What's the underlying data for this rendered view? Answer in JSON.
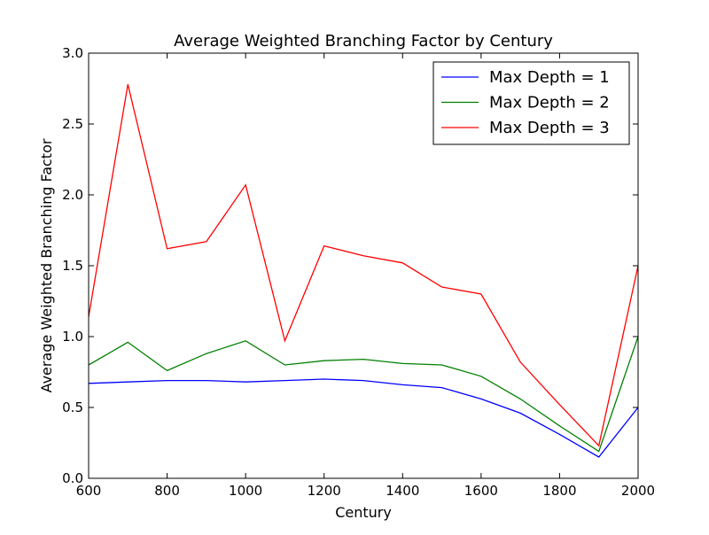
{
  "chart_data": {
    "type": "line",
    "title": "Average Weighted Branching Factor by Century",
    "xlabel": "Century",
    "ylabel": "Average Weighted Branching Factor",
    "xlim": [
      600,
      2000
    ],
    "ylim": [
      0.0,
      3.0
    ],
    "xticks": [
      600,
      800,
      1000,
      1200,
      1400,
      1600,
      1800,
      2000
    ],
    "xtick_labels": [
      "600",
      "800",
      "1000",
      "1200",
      "1400",
      "1600",
      "1800",
      "2000"
    ],
    "yticks": [
      0.0,
      0.5,
      1.0,
      1.5,
      2.0,
      2.5,
      3.0
    ],
    "ytick_labels": [
      "0.0",
      "0.5",
      "1.0",
      "1.5",
      "2.0",
      "2.5",
      "3.0"
    ],
    "grid": false,
    "legend_position": "top-right",
    "x": [
      600,
      700,
      800,
      900,
      1000,
      1100,
      1200,
      1300,
      1400,
      1500,
      1600,
      1700,
      1800,
      1900,
      2000
    ],
    "series": [
      {
        "name": "Max Depth = 1",
        "color": "#0000ff",
        "values": [
          0.67,
          0.68,
          0.69,
          0.69,
          0.68,
          0.69,
          0.7,
          0.69,
          0.66,
          0.64,
          0.56,
          0.46,
          0.31,
          0.15,
          0.5
        ]
      },
      {
        "name": "Max Depth = 2",
        "color": "#008000",
        "values": [
          0.8,
          0.96,
          0.76,
          0.88,
          0.97,
          0.8,
          0.83,
          0.84,
          0.81,
          0.8,
          0.72,
          0.56,
          0.37,
          0.19,
          1.0
        ]
      },
      {
        "name": "Max Depth = 3",
        "color": "#ff0000",
        "values": [
          1.14,
          2.78,
          1.62,
          1.67,
          2.07,
          0.97,
          1.64,
          1.57,
          1.52,
          1.35,
          1.3,
          0.82,
          0.52,
          0.23,
          1.5
        ]
      }
    ]
  }
}
